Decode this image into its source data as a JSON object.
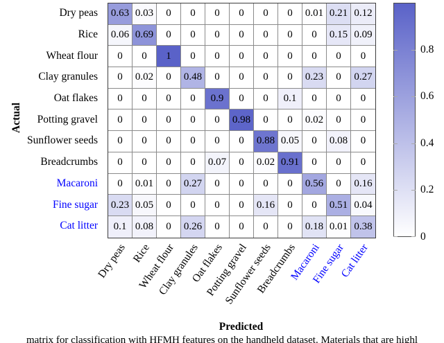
{
  "figure": {
    "xlabel": "Predicted",
    "ylabel": "Actual",
    "caption": "matrix for classification with HFMH features on the handheld dataset. Materials that are highl"
  },
  "colors": {
    "novel_class_label": "#0000ff",
    "known_class_label": "#000000",
    "colormap_min": "#ffffff",
    "colormap_max": "#5a62c8",
    "gridline": "#8a8a8a"
  },
  "chart_data": {
    "type": "heatmap",
    "title": "",
    "xlabel": "Predicted",
    "ylabel": "Actual",
    "categories": [
      "Dry peas",
      "Rice",
      "Wheat flour",
      "Clay granules",
      "Oat flakes",
      "Potting gravel",
      "Sunflower seeds",
      "Breadcrumbs",
      "Macaroni",
      "Fine sugar",
      "Cat litter"
    ],
    "novel_classes": [
      "Macaroni",
      "Fine sugar",
      "Cat litter"
    ],
    "rows": [
      [
        0.63,
        0.03,
        0,
        0,
        0,
        0,
        0,
        0,
        0.01,
        0.21,
        0.12
      ],
      [
        0.06,
        0.69,
        0,
        0,
        0,
        0,
        0,
        0,
        0,
        0.15,
        0.09
      ],
      [
        0,
        0,
        1,
        0,
        0,
        0,
        0,
        0,
        0,
        0,
        0
      ],
      [
        0,
        0.02,
        0,
        0.48,
        0,
        0,
        0,
        0,
        0.23,
        0,
        0.27
      ],
      [
        0,
        0,
        0,
        0,
        0.9,
        0,
        0,
        0.1,
        0,
        0,
        0
      ],
      [
        0,
        0,
        0,
        0,
        0,
        0.98,
        0,
        0,
        0.02,
        0,
        0
      ],
      [
        0,
        0,
        0,
        0,
        0,
        0,
        0.88,
        0.05,
        0,
        0.08,
        0
      ],
      [
        0,
        0,
        0,
        0,
        0.07,
        0,
        0.02,
        0.91,
        0,
        0,
        0
      ],
      [
        0,
        0.01,
        0,
        0.27,
        0,
        0,
        0,
        0,
        0.56,
        0,
        0.16
      ],
      [
        0.23,
        0.05,
        0,
        0,
        0,
        0,
        0.16,
        0,
        0,
        0.51,
        0.04
      ],
      [
        0.1,
        0.08,
        0,
        0.26,
        0,
        0,
        0,
        0,
        0.18,
        0.01,
        0.38
      ]
    ],
    "grid": true,
    "legend_position": "right",
    "colorbar": {
      "min": 0,
      "max": 1,
      "ticks": [
        0,
        0.2,
        0.4,
        0.6,
        0.8
      ],
      "min_color": "#ffffff",
      "max_color": "#5a62c8"
    }
  }
}
